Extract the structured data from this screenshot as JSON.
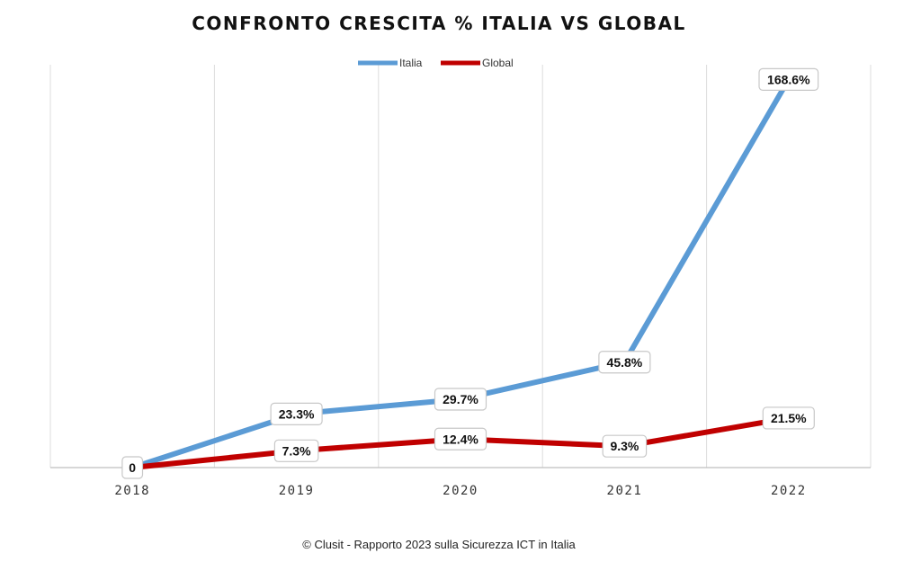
{
  "chart_data": {
    "type": "line",
    "title": "CONFRONTO  CRESCITA  %  ITALIA  VS  GLOBAL",
    "categories": [
      "2018",
      "2019",
      "2020",
      "2021",
      "2022"
    ],
    "series": [
      {
        "name": "Italia",
        "color": "#5b9bd5",
        "values": [
          0,
          23.3,
          29.7,
          45.8,
          168.6
        ],
        "labels": [
          "0",
          "23.3%",
          "29.7%",
          "45.8%",
          "168.6%"
        ]
      },
      {
        "name": "Global",
        "color": "#c00000",
        "values": [
          0,
          7.3,
          12.4,
          9.3,
          21.5
        ],
        "labels": [
          "",
          "7.3%",
          "12.4%",
          "9.3%",
          "21.5%"
        ]
      }
    ],
    "ylim": [
      0,
      175
    ],
    "grid": "vertical",
    "legend_position": "top-center",
    "xlabel": "",
    "ylabel": ""
  },
  "source": "© Clusit - Rapporto 2023 sulla Sicurezza ICT in Italia"
}
